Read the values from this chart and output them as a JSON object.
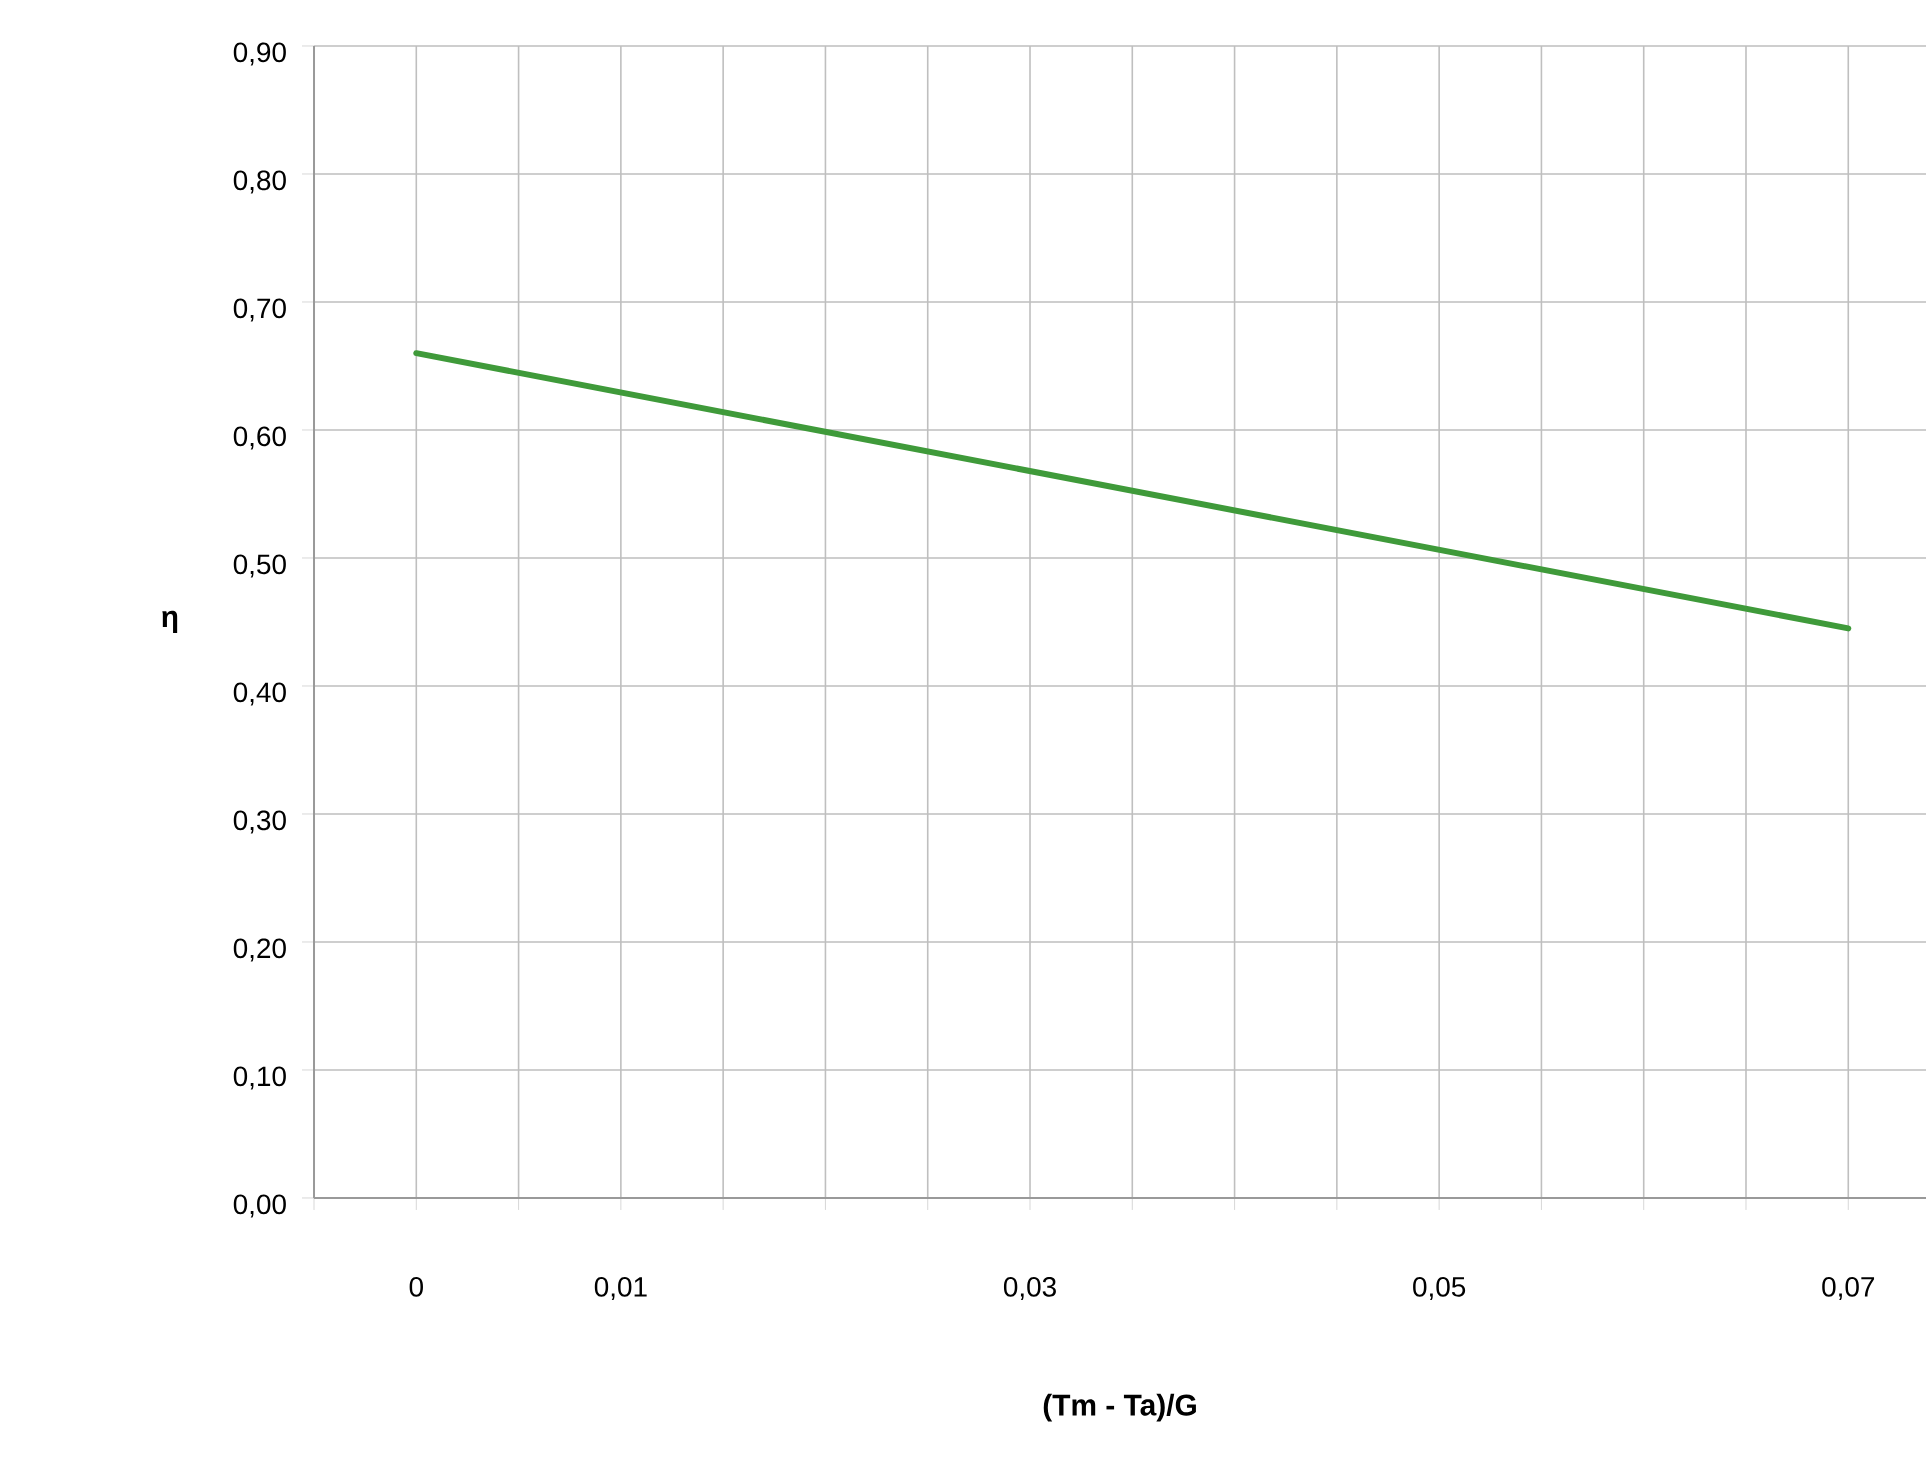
{
  "chart_data": {
    "type": "line",
    "xlabel": "(Tm - Ta)/G",
    "ylabel": "η",
    "x": [
      0,
      0.07
    ],
    "series": [
      {
        "color": "#3f9a3a",
        "values": [
          0.66,
          0.445
        ]
      }
    ],
    "xlim": [
      -0.005,
      0.0738
    ],
    "xticks": [
      {
        "value": -0.005,
        "label": null
      },
      {
        "value": 0,
        "label": "0"
      },
      {
        "value": 0.005,
        "label": null
      },
      {
        "value": 0.01,
        "label": "0,01"
      },
      {
        "value": 0.015,
        "label": null
      },
      {
        "value": 0.02,
        "label": null
      },
      {
        "value": 0.025,
        "label": null
      },
      {
        "value": 0.03,
        "label": "0,03"
      },
      {
        "value": 0.035,
        "label": null
      },
      {
        "value": 0.04,
        "label": null
      },
      {
        "value": 0.045,
        "label": null
      },
      {
        "value": 0.05,
        "label": "0,05"
      },
      {
        "value": 0.055,
        "label": null
      },
      {
        "value": 0.06,
        "label": null
      },
      {
        "value": 0.065,
        "label": null
      },
      {
        "value": 0.07,
        "label": "0,07"
      }
    ],
    "ylim": [
      0,
      0.9
    ],
    "yticks": [
      {
        "value": 0,
        "label": "0,00"
      },
      {
        "value": 0.1,
        "label": "0,10"
      },
      {
        "value": 0.2,
        "label": "0,20"
      },
      {
        "value": 0.3,
        "label": "0,30"
      },
      {
        "value": 0.4,
        "label": "0,40"
      },
      {
        "value": 0.5,
        "label": "0,50"
      },
      {
        "value": 0.6,
        "label": "0,60"
      },
      {
        "value": 0.7,
        "label": "0,70"
      },
      {
        "value": 0.8,
        "label": "0,80"
      },
      {
        "value": 0.9,
        "label": "0,90"
      }
    ],
    "grid": true,
    "marker": "none",
    "line_style": "solid"
  }
}
